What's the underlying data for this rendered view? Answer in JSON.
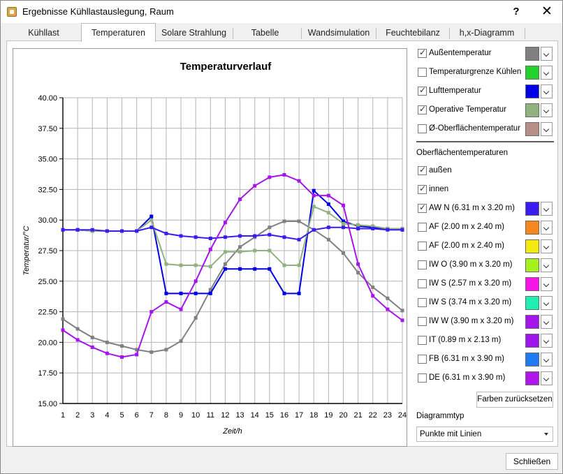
{
  "window": {
    "title": "Ergebnisse Kühllastauslegung, Raum",
    "help": "?",
    "close": "✕"
  },
  "tabs": [
    {
      "label": "Kühllast"
    },
    {
      "label": "Temperaturen",
      "active": true
    },
    {
      "label": "Solare Strahlung"
    },
    {
      "label": "Tabelle"
    },
    {
      "label": "Wandsimulation"
    },
    {
      "label": "Feuchtebilanz"
    },
    {
      "label": "h,x-Diagramm"
    }
  ],
  "legend": {
    "main": [
      {
        "label": "Außentemperatur",
        "checked": true,
        "color": "#808080"
      },
      {
        "label": "Temperaturgrenze Kühlen",
        "checked": false,
        "color": "#22d22a"
      },
      {
        "label": "Lufttemperatur",
        "checked": true,
        "color": "#0000e6"
      },
      {
        "label": "Operative Temperatur",
        "checked": true,
        "color": "#8fb27e"
      },
      {
        "label": "Ø-Oberflächentemperatur",
        "checked": false,
        "color": "#b78e86"
      }
    ],
    "surfaces_title": "Oberflächentemperaturen",
    "surfaces": [
      {
        "label": "außen",
        "checked": true
      },
      {
        "label": "innen",
        "checked": true
      },
      {
        "label": "AW N (6.31 m x 3.20 m)",
        "checked": true,
        "color": "#3a1cf0"
      },
      {
        "label": "AF (2.00 m x 2.40 m)",
        "checked": false,
        "color": "#f7861c"
      },
      {
        "label": "AF (2.00 m x 2.40 m)",
        "checked": false,
        "color": "#f5ea10"
      },
      {
        "label": "IW O (3.90 m x 3.20 m)",
        "checked": false,
        "color": "#a6f01c"
      },
      {
        "label": "IW S (2.57 m x 3.20 m)",
        "checked": false,
        "color": "#f714e6"
      },
      {
        "label": "IW S (3.74 m x 3.20 m)",
        "checked": false,
        "color": "#1ef0b4"
      },
      {
        "label": "IW W (3.90 m x 3.20 m)",
        "checked": false,
        "color": "#a514ec"
      },
      {
        "label": "IT (0.89 m x 2.13 m)",
        "checked": false,
        "color": "#9d14ec"
      },
      {
        "label": "FB (6.31 m x 3.90 m)",
        "checked": false,
        "color": "#1e7cf0"
      },
      {
        "label": "DE (6.31 m x 3.90 m)",
        "checked": false,
        "color": "#b414ec"
      }
    ],
    "reset_label": "Farben zurücksetzen",
    "chart_type_label": "Diagrammtyp",
    "chart_type_value": "Punkte mit Linien"
  },
  "footer": {
    "close_label": "Schließen"
  },
  "chart_data": {
    "type": "line",
    "title": "Temperaturverlauf",
    "xlabel": "Zeit/h",
    "ylabel": "Temperatur/°C",
    "x": [
      1,
      2,
      3,
      4,
      5,
      6,
      7,
      8,
      9,
      10,
      11,
      12,
      13,
      14,
      15,
      16,
      17,
      18,
      19,
      20,
      21,
      22,
      23,
      24
    ],
    "xlim": [
      1,
      24
    ],
    "ylim": [
      15,
      40
    ],
    "yticks": [
      "15.00",
      "17.50",
      "20.00",
      "22.50",
      "25.00",
      "27.50",
      "30.00",
      "32.50",
      "35.00",
      "37.50",
      "40.00"
    ],
    "grid": true,
    "markers": true,
    "series": [
      {
        "name": "Außentemperatur",
        "color": "#808080",
        "values": [
          21.9,
          21.1,
          20.4,
          20.0,
          19.7,
          19.4,
          19.2,
          19.4,
          20.1,
          22.0,
          24.3,
          26.4,
          27.8,
          28.6,
          29.4,
          29.9,
          29.9,
          29.2,
          28.4,
          27.3,
          25.7,
          24.5,
          23.6,
          22.6
        ]
      },
      {
        "name": "Lufttemperatur",
        "color": "#0000e6",
        "values": [
          29.2,
          29.2,
          29.1,
          29.1,
          29.1,
          29.1,
          30.3,
          24.0,
          24.0,
          24.0,
          24.0,
          26.0,
          26.0,
          26.0,
          26.0,
          24.0,
          24.0,
          32.4,
          31.3,
          29.9,
          29.5,
          29.4,
          29.3,
          29.2
        ]
      },
      {
        "name": "Operative Temperatur",
        "color": "#8fb27e",
        "values": [
          29.2,
          29.2,
          29.1,
          29.1,
          29.1,
          29.1,
          30.0,
          26.4,
          26.3,
          26.3,
          26.2,
          27.4,
          27.4,
          27.5,
          27.5,
          26.3,
          26.3,
          31.1,
          30.6,
          29.7,
          29.6,
          29.5,
          29.3,
          29.3
        ]
      },
      {
        "name": "AW N (6.31 m x 3.20 m)",
        "color": "#3a1cf0",
        "values": [
          29.2,
          29.2,
          29.2,
          29.1,
          29.1,
          29.1,
          29.4,
          28.9,
          28.7,
          28.6,
          28.5,
          28.6,
          28.7,
          28.7,
          28.8,
          28.6,
          28.4,
          29.2,
          29.4,
          29.4,
          29.3,
          29.3,
          29.2,
          29.2
        ]
      },
      {
        "name": "außen",
        "color": "#a514ec",
        "values": [
          21.0,
          20.2,
          19.6,
          19.1,
          18.8,
          19.0,
          22.5,
          23.3,
          22.7,
          25.0,
          27.6,
          29.8,
          31.7,
          32.8,
          33.5,
          33.7,
          33.2,
          32.0,
          32.0,
          31.2,
          26.4,
          23.8,
          22.7,
          21.8
        ]
      }
    ]
  }
}
